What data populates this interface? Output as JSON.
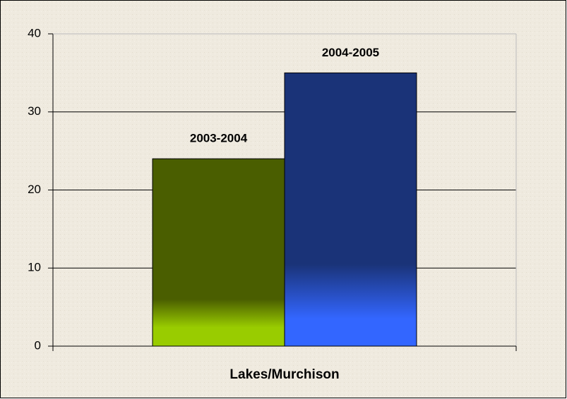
{
  "chart_data": {
    "type": "bar",
    "categories": [
      "Lakes/Murchison"
    ],
    "series": [
      {
        "name": "2003-2004",
        "color": "#4a5e00",
        "values": [
          24
        ]
      },
      {
        "name": "2004-2005",
        "color": "#1a3378",
        "values": [
          35
        ]
      }
    ],
    "ylim": [
      0,
      40
    ],
    "yticks": [
      0,
      10,
      20,
      30,
      40
    ],
    "grid": true
  }
}
